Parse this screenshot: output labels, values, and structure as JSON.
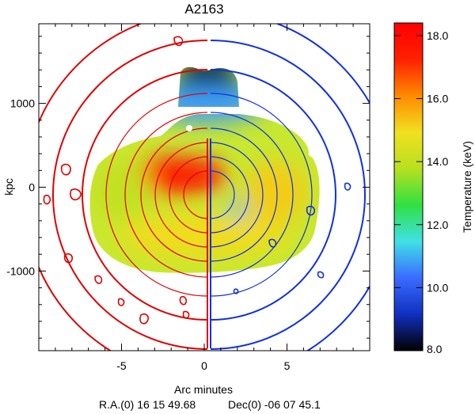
{
  "chart_data": {
    "type": "heatmap",
    "title": "A2163",
    "xlabel": "Arc minutes",
    "ylabel": "kpc",
    "footer_ra": "R.A.(0) 16 15 49.68",
    "footer_dec": "Dec(0) -06 07 45.1",
    "xlim": [
      -10,
      10
    ],
    "ylim": [
      -1950,
      1950
    ],
    "x_ticks": [
      {
        "value": -5,
        "label": "-5"
      },
      {
        "value": 0,
        "label": "0"
      },
      {
        "value": 5,
        "label": "5"
      }
    ],
    "y_ticks": [
      {
        "value": 1000,
        "label": "1000"
      },
      {
        "value": 0,
        "label": "0"
      },
      {
        "value": -1000,
        "label": "-1000"
      }
    ],
    "colorbar": {
      "label": "Temperature (keV)",
      "range": [
        8.0,
        18.4
      ],
      "ticks": [
        {
          "value": 18.0,
          "label": "18.0"
        },
        {
          "value": 16.0,
          "label": "16.0"
        },
        {
          "value": 14.0,
          "label": "14.0"
        },
        {
          "value": 12.0,
          "label": "12.0"
        },
        {
          "value": 10.0,
          "label": "10.0"
        },
        {
          "value": 8.0,
          "label": "8.0"
        }
      ],
      "colors": [
        "#000000",
        "#1030c0",
        "#3a6cff",
        "#40e0e8",
        "#30e040",
        "#b8e020",
        "#f0e020",
        "#ff8a00",
        "#ff2000",
        "#ff0000"
      ]
    },
    "temperature_regions": [
      {
        "name": "cold-cap",
        "x": 0.2,
        "y": 1290,
        "rx": 1.9,
        "ry": 260,
        "temp": 8.0
      },
      {
        "name": "cap-edge",
        "x": 0.1,
        "y": 1000,
        "rx": 3.6,
        "ry": 230,
        "temp": 10.8
      },
      {
        "name": "hot-core",
        "x": -1.6,
        "y": 140,
        "rx": 2.9,
        "ry": 220,
        "temp": 17.6
      },
      {
        "name": "cool-spot",
        "x": 2.0,
        "y": -280,
        "rx": 0.55,
        "ry": 120,
        "temp": 11.0
      },
      {
        "name": "east-shoulder",
        "x": -5.0,
        "y": -40,
        "rx": 1.8,
        "ry": 350,
        "temp": 14.0
      },
      {
        "name": "west-shoulder",
        "x": 4.3,
        "y": -60,
        "rx": 1.9,
        "ry": 380,
        "temp": 15.2
      },
      {
        "name": "south-plateau",
        "x": 0.0,
        "y": -580,
        "rx": 5.2,
        "ry": 250,
        "temp": 15.0
      }
    ],
    "grid": false
  }
}
